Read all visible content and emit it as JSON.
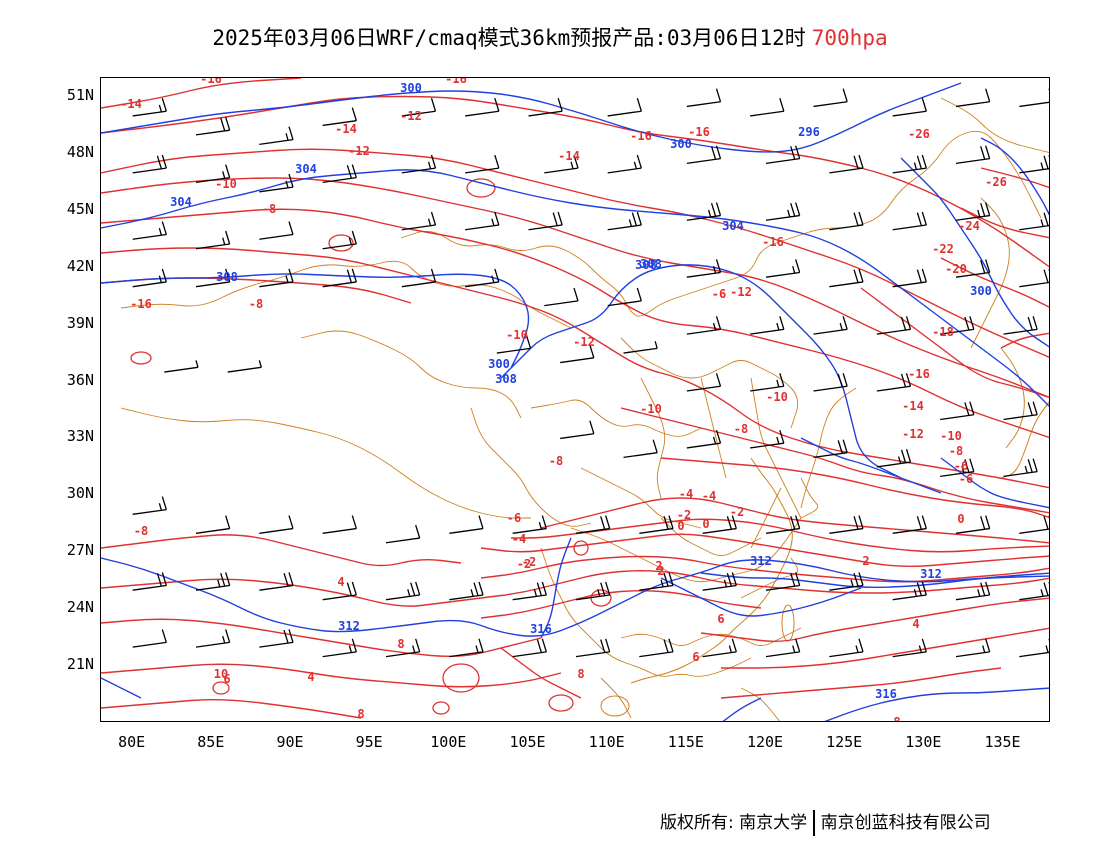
{
  "header": {
    "title": "2025年03月06日WRF/cmaq模式36km预报产品:03月06日12时",
    "level": "700hpa"
  },
  "axes": {
    "lat_labels": [
      "51N",
      "48N",
      "45N",
      "42N",
      "39N",
      "36N",
      "33N",
      "30N",
      "27N",
      "24N",
      "21N"
    ],
    "lon_labels": [
      "80E",
      "85E",
      "90E",
      "95E",
      "100E",
      "105E",
      "110E",
      "115E",
      "120E",
      "125E",
      "130E",
      "135E"
    ]
  },
  "map": {
    "lon_range": [
      78,
      138
    ],
    "lat_range": [
      18,
      52
    ],
    "colors": {
      "temperature": "#e03030",
      "height": "#2040e0",
      "boundary": "#d08020",
      "wind": "#000000"
    },
    "height_labels": [
      "300",
      "300",
      "296",
      "300",
      "304",
      "304",
      "304",
      "308",
      "308",
      "300",
      "308",
      "308",
      "312",
      "316",
      "312",
      "312",
      "316"
    ],
    "temp_labels": [
      "-16",
      "-16",
      "-14",
      "-12",
      "-14",
      "-12",
      "-16",
      "-16",
      "-10",
      "-14",
      "-8",
      "-26",
      "-26",
      "-24",
      "-22",
      "-20",
      "-16",
      "-16",
      "-8",
      "-6",
      "-12",
      "-18",
      "-16",
      "-14",
      "-12",
      "-10",
      "-8",
      "-6",
      "-10",
      "-12",
      "-10",
      "-10",
      "-8",
      "-8",
      "-6",
      "-4",
      "-2",
      "0",
      "-4",
      "-2",
      "0",
      "-2",
      "-6",
      "-4",
      "-2",
      "0",
      "2",
      "2",
      "4",
      "-8",
      "4",
      "6",
      "8",
      "10",
      "8",
      "8",
      "6",
      "6",
      "4",
      "2",
      "8"
    ],
    "wind_barbs": [
      {
        "lon": 80,
        "lat": 50,
        "speed": 15
      },
      {
        "lon": 84,
        "lat": 49,
        "speed": 20
      },
      {
        "lon": 88,
        "lat": 48.5,
        "speed": 15
      },
      {
        "lon": 92,
        "lat": 49.5,
        "speed": 10
      },
      {
        "lon": 80,
        "lat": 47,
        "speed": 20
      },
      {
        "lon": 84,
        "lat": 46.5,
        "speed": 15
      },
      {
        "lon": 88,
        "lat": 46,
        "speed": 15
      },
      {
        "lon": 92,
        "lat": 46.5,
        "speed": 20
      },
      {
        "lon": 97,
        "lat": 50,
        "speed": 10
      },
      {
        "lon": 101,
        "lat": 50,
        "speed": 10
      },
      {
        "lon": 105,
        "lat": 50,
        "speed": 10
      },
      {
        "lon": 110,
        "lat": 50,
        "speed": 10
      },
      {
        "lon": 97,
        "lat": 47,
        "speed": 15
      },
      {
        "lon": 101,
        "lat": 47,
        "speed": 10
      },
      {
        "lon": 106,
        "lat": 47,
        "speed": 15
      },
      {
        "lon": 110,
        "lat": 47,
        "speed": 15
      },
      {
        "lon": 115,
        "lat": 50.5,
        "speed": 10
      },
      {
        "lon": 119,
        "lat": 50,
        "speed": 10
      },
      {
        "lon": 123,
        "lat": 50.5,
        "speed": 10
      },
      {
        "lon": 128,
        "lat": 50,
        "speed": 10
      },
      {
        "lon": 115,
        "lat": 47.5,
        "speed": 20
      },
      {
        "lon": 120,
        "lat": 47.5,
        "speed": 20
      },
      {
        "lon": 124,
        "lat": 47,
        "speed": 20
      },
      {
        "lon": 128,
        "lat": 47,
        "speed": 25
      },
      {
        "lon": 132,
        "lat": 50.5,
        "speed": 10
      },
      {
        "lon": 136,
        "lat": 50.5,
        "speed": 10
      },
      {
        "lon": 132,
        "lat": 47.5,
        "speed": 20
      },
      {
        "lon": 136,
        "lat": 47,
        "speed": 25
      },
      {
        "lon": 80,
        "lat": 43.5,
        "speed": 15
      },
      {
        "lon": 84,
        "lat": 43,
        "speed": 15
      },
      {
        "lon": 88,
        "lat": 43.5,
        "speed": 10
      },
      {
        "lon": 92,
        "lat": 43,
        "speed": 15
      },
      {
        "lon": 80,
        "lat": 41,
        "speed": 15
      },
      {
        "lon": 84,
        "lat": 41,
        "speed": 10
      },
      {
        "lon": 88,
        "lat": 41,
        "speed": 15
      },
      {
        "lon": 92,
        "lat": 41,
        "speed": 20
      },
      {
        "lon": 97,
        "lat": 44,
        "speed": 15
      },
      {
        "lon": 101,
        "lat": 44,
        "speed": 15
      },
      {
        "lon": 105,
        "lat": 44,
        "speed": 20
      },
      {
        "lon": 110,
        "lat": 44,
        "speed": 25
      },
      {
        "lon": 97,
        "lat": 41,
        "speed": 10
      },
      {
        "lon": 101,
        "lat": 41,
        "speed": 15
      },
      {
        "lon": 106,
        "lat": 40,
        "speed": 10
      },
      {
        "lon": 110,
        "lat": 40,
        "speed": 10
      },
      {
        "lon": 115,
        "lat": 44.5,
        "speed": 25
      },
      {
        "lon": 120,
        "lat": 44.5,
        "speed": 25
      },
      {
        "lon": 124,
        "lat": 44,
        "speed": 20
      },
      {
        "lon": 128,
        "lat": 44,
        "speed": 20
      },
      {
        "lon": 115,
        "lat": 41.5,
        "speed": 15
      },
      {
        "lon": 120,
        "lat": 41.5,
        "speed": 15
      },
      {
        "lon": 124,
        "lat": 41,
        "speed": 20
      },
      {
        "lon": 128,
        "lat": 41,
        "speed": 20
      },
      {
        "lon": 132,
        "lat": 44.5,
        "speed": 25
      },
      {
        "lon": 136,
        "lat": 44,
        "speed": 25
      },
      {
        "lon": 132,
        "lat": 41.5,
        "speed": 20
      },
      {
        "lon": 136,
        "lat": 41,
        "speed": 20
      },
      {
        "lon": 82,
        "lat": 36.5,
        "speed": 5
      },
      {
        "lon": 86,
        "lat": 36.5,
        "speed": 5
      },
      {
        "lon": 115,
        "lat": 38.5,
        "speed": 15
      },
      {
        "lon": 119,
        "lat": 38.5,
        "speed": 15
      },
      {
        "lon": 123,
        "lat": 38.5,
        "speed": 15
      },
      {
        "lon": 127,
        "lat": 38.5,
        "speed": 20
      },
      {
        "lon": 131,
        "lat": 38.5,
        "speed": 20
      },
      {
        "lon": 135,
        "lat": 38.5,
        "speed": 20
      },
      {
        "lon": 111,
        "lat": 37.5,
        "speed": 5
      },
      {
        "lon": 107,
        "lat": 37,
        "speed": 10
      },
      {
        "lon": 103,
        "lat": 37.5,
        "speed": 10
      },
      {
        "lon": 115,
        "lat": 35.5,
        "speed": 10
      },
      {
        "lon": 119,
        "lat": 35.5,
        "speed": 15
      },
      {
        "lon": 123,
        "lat": 35.5,
        "speed": 20
      },
      {
        "lon": 127,
        "lat": 35.5,
        "speed": 20
      },
      {
        "lon": 131,
        "lat": 34,
        "speed": 20
      },
      {
        "lon": 135,
        "lat": 34,
        "speed": 20
      },
      {
        "lon": 107,
        "lat": 33,
        "speed": 10
      },
      {
        "lon": 111,
        "lat": 32,
        "speed": 10
      },
      {
        "lon": 115,
        "lat": 32.5,
        "speed": 15
      },
      {
        "lon": 119,
        "lat": 32.5,
        "speed": 15
      },
      {
        "lon": 123,
        "lat": 32,
        "speed": 20
      },
      {
        "lon": 127,
        "lat": 31.5,
        "speed": 25
      },
      {
        "lon": 131,
        "lat": 31,
        "speed": 25
      },
      {
        "lon": 135,
        "lat": 31,
        "speed": 25
      },
      {
        "lon": 80,
        "lat": 29,
        "speed": 15
      },
      {
        "lon": 84,
        "lat": 28,
        "speed": 10
      },
      {
        "lon": 88,
        "lat": 28,
        "speed": 10
      },
      {
        "lon": 92,
        "lat": 28,
        "speed": 10
      },
      {
        "lon": 96,
        "lat": 27.5,
        "speed": 10
      },
      {
        "lon": 100,
        "lat": 28,
        "speed": 10
      },
      {
        "lon": 104,
        "lat": 28,
        "speed": 15
      },
      {
        "lon": 108,
        "lat": 28,
        "speed": 20
      },
      {
        "lon": 112,
        "lat": 28,
        "speed": 20
      },
      {
        "lon": 116,
        "lat": 28,
        "speed": 20
      },
      {
        "lon": 120,
        "lat": 28,
        "speed": 20
      },
      {
        "lon": 124,
        "lat": 28,
        "speed": 20
      },
      {
        "lon": 128,
        "lat": 28,
        "speed": 20
      },
      {
        "lon": 132,
        "lat": 28,
        "speed": 20
      },
      {
        "lon": 136,
        "lat": 28,
        "speed": 20
      },
      {
        "lon": 80,
        "lat": 25,
        "speed": 20
      },
      {
        "lon": 84,
        "lat": 25,
        "speed": 25
      },
      {
        "lon": 88,
        "lat": 25,
        "speed": 20
      },
      {
        "lon": 92,
        "lat": 24.5,
        "speed": 20
      },
      {
        "lon": 96,
        "lat": 24.5,
        "speed": 25
      },
      {
        "lon": 100,
        "lat": 24.5,
        "speed": 25
      },
      {
        "lon": 104,
        "lat": 24.5,
        "speed": 25
      },
      {
        "lon": 108,
        "lat": 24.5,
        "speed": 25
      },
      {
        "lon": 112,
        "lat": 25,
        "speed": 25
      },
      {
        "lon": 116,
        "lat": 25,
        "speed": 25
      },
      {
        "lon": 120,
        "lat": 25,
        "speed": 20
      },
      {
        "lon": 124,
        "lat": 25,
        "speed": 25
      },
      {
        "lon": 128,
        "lat": 24.5,
        "speed": 25
      },
      {
        "lon": 132,
        "lat": 24.5,
        "speed": 25
      },
      {
        "lon": 136,
        "lat": 24.5,
        "speed": 25
      },
      {
        "lon": 80,
        "lat": 22,
        "speed": 10
      },
      {
        "lon": 84,
        "lat": 22,
        "speed": 15
      },
      {
        "lon": 88,
        "lat": 22,
        "speed": 20
      },
      {
        "lon": 92,
        "lat": 21.5,
        "speed": 15
      },
      {
        "lon": 96,
        "lat": 21.5,
        "speed": 15
      },
      {
        "lon": 100,
        "lat": 21.5,
        "speed": 15
      },
      {
        "lon": 104,
        "lat": 21.5,
        "speed": 20
      },
      {
        "lon": 108,
        "lat": 21.5,
        "speed": 20
      },
      {
        "lon": 112,
        "lat": 21.5,
        "speed": 20
      },
      {
        "lon": 116,
        "lat": 21.5,
        "speed": 15
      },
      {
        "lon": 120,
        "lat": 21.5,
        "speed": 15
      },
      {
        "lon": 124,
        "lat": 21.5,
        "speed": 15
      },
      {
        "lon": 128,
        "lat": 21.5,
        "speed": 15
      },
      {
        "lon": 132,
        "lat": 21.5,
        "speed": 15
      },
      {
        "lon": 136,
        "lat": 21.5,
        "speed": 15
      }
    ]
  },
  "footer": {
    "copyright": "版权所有: 南京大学",
    "company": "南京创蓝科技有限公司"
  }
}
